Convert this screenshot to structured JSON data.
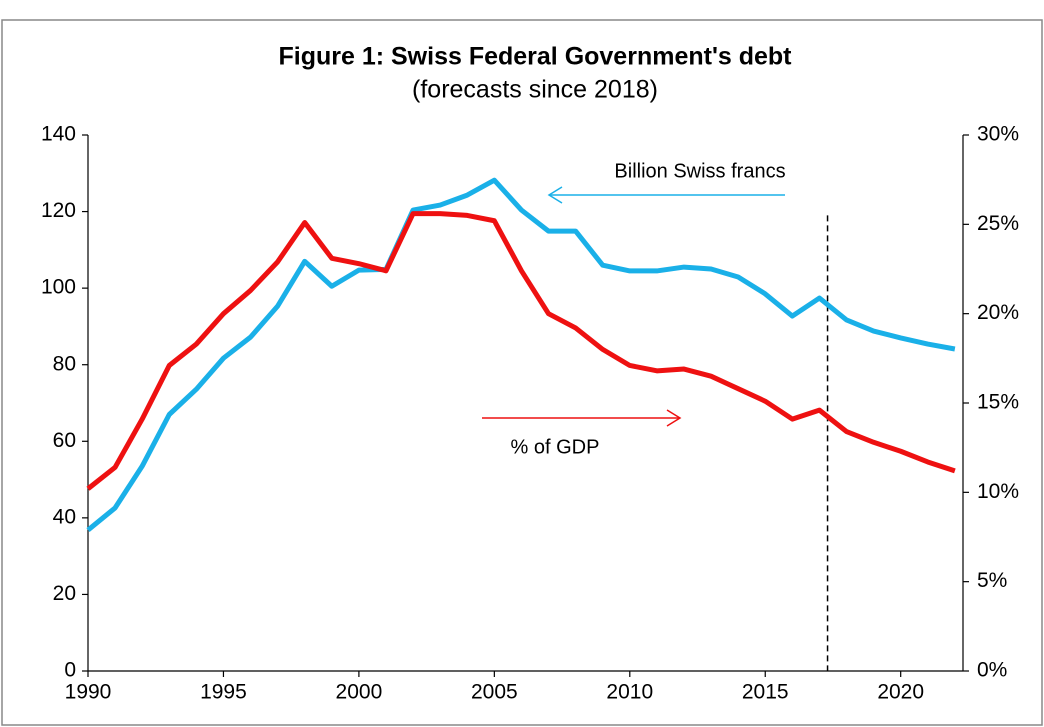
{
  "chart_data": {
    "type": "line",
    "title": "Figure 1: Swiss Federal Government's debt",
    "subtitle": "(forecasts since 2018)",
    "x": [
      1990,
      1991,
      1992,
      1993,
      1994,
      1995,
      1996,
      1997,
      1998,
      1999,
      2000,
      2001,
      2002,
      2003,
      2004,
      2005,
      2006,
      2007,
      2008,
      2009,
      2010,
      2011,
      2012,
      2013,
      2014,
      2015,
      2016,
      2017,
      2018,
      2019,
      2020,
      2021,
      2022
    ],
    "series": [
      {
        "name": "Billion Swiss francs",
        "color": "#1ab0e8",
        "axis": "y",
        "values": [
          36.8,
          42.6,
          53.5,
          67,
          73.6,
          81.7,
          87.2,
          95.3,
          107,
          100.5,
          104.7,
          104.9,
          120.4,
          121.7,
          124.3,
          128.2,
          120.4,
          114.9,
          114.9,
          106,
          104.5,
          104.5,
          105.5,
          105,
          102.9,
          98.5,
          92.7,
          97.4,
          91.7,
          88.8,
          87,
          85.4,
          84.1
        ]
      },
      {
        "name": "% of GDP",
        "color": "#ee1111",
        "axis": "y2",
        "values": [
          10.2,
          11.4,
          14.1,
          17.1,
          18.3,
          20,
          21.3,
          22.9,
          25.1,
          23.1,
          22.8,
          22.4,
          25.6,
          25.6,
          25.5,
          25.2,
          22.4,
          20,
          19.2,
          18,
          17.1,
          16.8,
          16.9,
          16.5,
          15.8,
          15.1,
          14.1,
          14.6,
          13.4,
          12.8,
          12.3,
          11.7,
          11.2
        ]
      }
    ],
    "xlim": [
      1990,
      2022.3
    ],
    "xticks": [
      1990,
      1995,
      2000,
      2005,
      2010,
      2015,
      2020
    ],
    "ylim": [
      0,
      140
    ],
    "yticks": [
      0,
      20,
      40,
      60,
      80,
      100,
      120,
      140
    ],
    "y2lim": [
      0,
      30
    ],
    "y2ticks": [
      {
        "value": 0,
        "label": "0%"
      },
      {
        "value": 5,
        "label": "5%"
      },
      {
        "value": 10,
        "label": "10%"
      },
      {
        "value": 15,
        "label": "15%"
      },
      {
        "value": 20,
        "label": "20%"
      },
      {
        "value": 25,
        "label": "25%"
      },
      {
        "value": 30,
        "label": "30%"
      }
    ],
    "forecast_line_x": 2017.3
  }
}
